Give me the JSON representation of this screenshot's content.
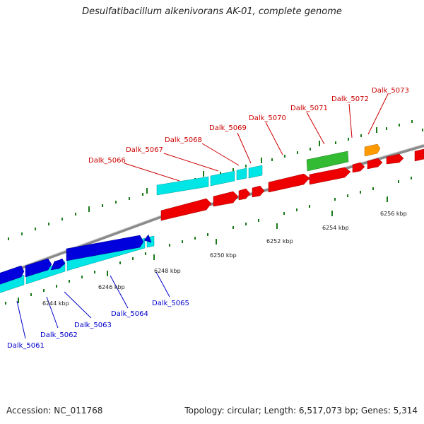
{
  "title": "Desulfatibacillum alkenivorans AK-01, complete genome",
  "footer": {
    "accession": "Accession: NC_011768",
    "summary": "Topology: circular; Length: 6,517,073 bp; Genes: 5,314"
  },
  "colors": {
    "backbone": "#8a8a8a",
    "tick": "#1a7a1a",
    "top_label": "#cc0000",
    "bottom_label": "#0000cc",
    "red": "#ee0000",
    "cyan": "#00e5e5",
    "blue": "#0000dd",
    "green": "#33bb33",
    "orange": "#ff9900"
  },
  "scale_labels": [
    "6244 kbp",
    "6246 kbp",
    "6248 kbp",
    "6250 kbp",
    "6252 kbp",
    "6254 kbp",
    "6256 kbp"
  ],
  "top_genes": [
    "Dalk_5066",
    "Dalk_5067",
    "Dalk_5068",
    "Dalk_5069",
    "Dalk_5070",
    "Dalk_5071",
    "Dalk_5072",
    "Dalk_5073"
  ],
  "bottom_genes": [
    "Dalk_5061",
    "Dalk_5062",
    "Dalk_5063",
    "Dalk_5064",
    "Dalk_5065"
  ]
}
